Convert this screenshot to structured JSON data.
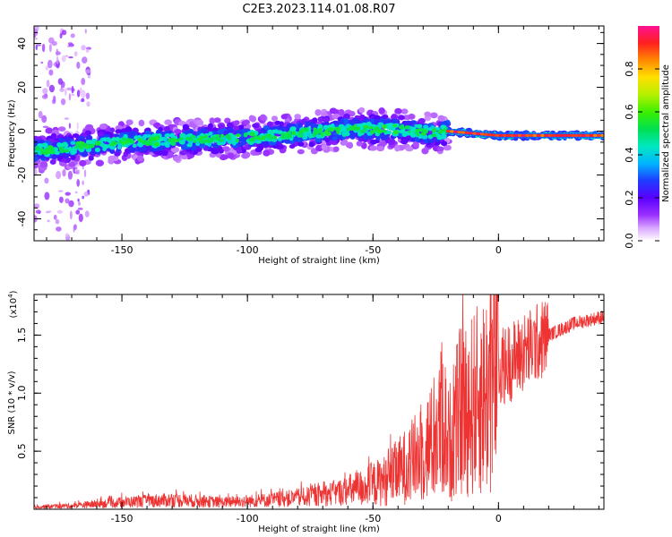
{
  "title": "C2E3.2023.114.01.08.R07",
  "chart_data": [
    {
      "type": "heatmap",
      "title": "C2E3.2023.114.01.08.R07",
      "xlabel": "Height of straight line (km)",
      "ylabel": "Frequency (Hz)",
      "xlim": [
        -185,
        42
      ],
      "ylim": [
        -50,
        48
      ],
      "x_ticks": [
        -150,
        -100,
        -50,
        0
      ],
      "y_ticks": [
        -40,
        -20,
        0,
        20,
        40
      ],
      "x_tick_labels": [
        "-150",
        "-100",
        "-50",
        "0"
      ],
      "y_tick_labels": [
        "-40",
        "-20",
        "0",
        "20",
        "40"
      ],
      "ridge": {
        "x": [
          -185,
          -150,
          -100,
          -80,
          -60,
          -40,
          -25,
          -20,
          -10,
          0,
          20,
          42
        ],
        "frequency": [
          -9,
          -5,
          -3,
          -1,
          1,
          1,
          -1,
          0,
          -1,
          -2,
          -2,
          -2
        ]
      },
      "colorbar": {
        "label": "Normalized spectral amplitude",
        "range": [
          0.0,
          1.0
        ],
        "ticks": [
          0.0,
          0.2,
          0.4,
          0.6,
          0.8
        ],
        "tick_labels": [
          "0.0",
          "0.2",
          "0.4",
          "0.6",
          "0.8"
        ]
      }
    },
    {
      "type": "line",
      "xlabel": "Height of straight line (km)",
      "ylabel": "SNR (10 * v/v)",
      "scale_note": "(x10",
      "scale_exp": "4",
      "scale_close": ")",
      "xlim": [
        -185,
        42
      ],
      "ylim": [
        0,
        1.85
      ],
      "x_ticks": [
        -150,
        -100,
        -50,
        0
      ],
      "x_tick_labels": [
        "-150",
        "-100",
        "-50",
        "0"
      ],
      "y_ticks": [
        0.5,
        1.0,
        1.5
      ],
      "y_tick_labels": [
        "0.5",
        "1.0",
        "1.5"
      ],
      "color": "#ee3333",
      "series": [
        {
          "name": "SNR",
          "x": [
            -185,
            -170,
            -150,
            -130,
            -110,
            -90,
            -70,
            -55,
            -45,
            -35,
            -30,
            -25,
            -22,
            -20,
            -15,
            -10,
            -5,
            0,
            10,
            20,
            30,
            42
          ],
          "y": [
            0.02,
            0.03,
            0.06,
            0.08,
            0.06,
            0.08,
            0.12,
            0.18,
            0.25,
            0.4,
            0.5,
            0.6,
            0.8,
            0.55,
            0.85,
            0.9,
            1.0,
            1.2,
            1.35,
            1.5,
            1.6,
            1.66
          ]
        }
      ]
    }
  ]
}
